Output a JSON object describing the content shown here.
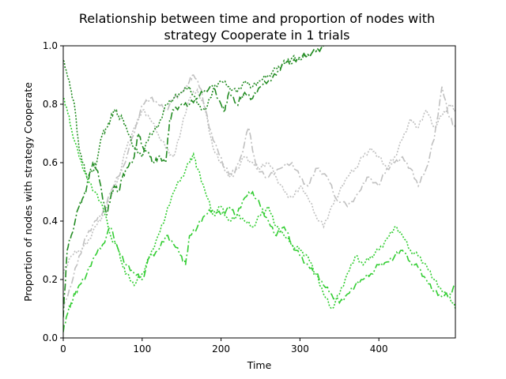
{
  "chart_data": {
    "type": "line",
    "title_line1": "Relationship between time and proportion of nodes with",
    "title_line2": "strategy Cooperate in 1 trials",
    "xlabel": "Time",
    "ylabel": "Proportion of nodes with strategy Cooperate",
    "xlim": [
      0,
      497
    ],
    "ylim": [
      0.0,
      1.0
    ],
    "xticks": [
      0,
      100,
      200,
      300,
      400
    ],
    "yticks": [
      0.0,
      0.2,
      0.4,
      0.6,
      0.8,
      1.0
    ],
    "xtick_labels": [
      "0",
      "100",
      "200",
      "300",
      "400"
    ],
    "ytick_labels": [
      "0.0",
      "0.2",
      "0.4",
      "0.6",
      "0.8",
      "1.0"
    ],
    "grid": false,
    "series": [
      {
        "color": "#c0c0c0",
        "dash": "9,3,2,3",
        "x": [
          0,
          10,
          20,
          30,
          40,
          50,
          60,
          75,
          90,
          100,
          110,
          120,
          130,
          140,
          150,
          160,
          165,
          175,
          185,
          195,
          205,
          215,
          225,
          235,
          245,
          260,
          275,
          290,
          300,
          310,
          320,
          335,
          345,
          360,
          375,
          385,
          400,
          410,
          420,
          430,
          440,
          450,
          460,
          470,
          480,
          490,
          497
        ],
        "y": [
          0.1,
          0.18,
          0.28,
          0.35,
          0.4,
          0.43,
          0.5,
          0.58,
          0.7,
          0.8,
          0.82,
          0.8,
          0.78,
          0.82,
          0.84,
          0.88,
          0.9,
          0.85,
          0.72,
          0.65,
          0.58,
          0.55,
          0.62,
          0.72,
          0.58,
          0.55,
          0.58,
          0.6,
          0.55,
          0.52,
          0.58,
          0.55,
          0.48,
          0.45,
          0.5,
          0.55,
          0.52,
          0.58,
          0.6,
          0.62,
          0.58,
          0.52,
          0.58,
          0.68,
          0.86,
          0.75,
          0.72
        ]
      },
      {
        "color": "#c0c0c0",
        "dash": "2,2",
        "x": [
          0,
          10,
          20,
          30,
          40,
          50,
          60,
          70,
          80,
          90,
          100,
          110,
          120,
          130,
          140,
          150,
          160,
          170,
          180,
          190,
          200,
          210,
          220,
          230,
          240,
          250,
          260,
          270,
          280,
          290,
          300,
          310,
          320,
          330,
          340,
          350,
          360,
          370,
          380,
          390,
          400,
          410,
          420,
          430,
          440,
          450,
          460,
          470,
          480,
          490,
          497
        ],
        "y": [
          0.22,
          0.28,
          0.3,
          0.32,
          0.38,
          0.42,
          0.48,
          0.55,
          0.65,
          0.72,
          0.78,
          0.75,
          0.7,
          0.65,
          0.62,
          0.72,
          0.82,
          0.85,
          0.78,
          0.65,
          0.6,
          0.55,
          0.58,
          0.62,
          0.6,
          0.58,
          0.6,
          0.55,
          0.5,
          0.48,
          0.52,
          0.48,
          0.42,
          0.38,
          0.45,
          0.5,
          0.55,
          0.58,
          0.62,
          0.65,
          0.62,
          0.58,
          0.62,
          0.68,
          0.75,
          0.72,
          0.78,
          0.72,
          0.76,
          0.8,
          0.78
        ]
      },
      {
        "color": "#228b22",
        "dash": "9,3,2,3",
        "x": [
          0,
          5,
          10,
          20,
          25,
          30,
          35,
          40,
          45,
          55,
          60,
          65,
          70,
          75,
          80,
          90,
          95,
          100,
          110,
          115,
          120,
          130,
          135,
          140,
          150,
          160,
          170,
          180,
          190,
          200,
          205,
          210,
          220,
          225,
          230,
          240,
          250,
          260,
          270,
          280,
          290,
          300,
          310,
          320,
          330
        ],
        "y": [
          0.07,
          0.3,
          0.35,
          0.45,
          0.48,
          0.52,
          0.58,
          0.6,
          0.55,
          0.42,
          0.48,
          0.52,
          0.5,
          0.55,
          0.58,
          0.62,
          0.7,
          0.66,
          0.62,
          0.6,
          0.62,
          0.6,
          0.75,
          0.78,
          0.8,
          0.8,
          0.82,
          0.85,
          0.86,
          0.8,
          0.78,
          0.84,
          0.8,
          0.82,
          0.84,
          0.82,
          0.86,
          0.88,
          0.9,
          0.95,
          0.94,
          0.96,
          0.97,
          0.98,
          1.0
        ]
      },
      {
        "color": "#228b22",
        "dash": "2,2",
        "x": [
          0,
          5,
          10,
          15,
          20,
          25,
          30,
          40,
          50,
          55,
          60,
          65,
          70,
          75,
          80,
          90,
          100,
          110,
          120,
          130,
          140,
          150,
          160,
          170,
          180,
          190,
          200,
          210,
          220,
          230,
          240,
          250,
          260,
          270,
          280,
          290,
          300,
          310,
          320,
          330
        ],
        "y": [
          0.95,
          0.9,
          0.85,
          0.78,
          0.65,
          0.6,
          0.55,
          0.58,
          0.7,
          0.72,
          0.75,
          0.78,
          0.76,
          0.75,
          0.72,
          0.65,
          0.62,
          0.7,
          0.72,
          0.8,
          0.82,
          0.84,
          0.86,
          0.8,
          0.78,
          0.85,
          0.88,
          0.86,
          0.84,
          0.88,
          0.86,
          0.88,
          0.9,
          0.92,
          0.94,
          0.96,
          0.95,
          0.97,
          0.98,
          1.0
        ]
      },
      {
        "color": "#32cd32",
        "dash": "9,3,2,3",
        "x": [
          0,
          5,
          10,
          15,
          20,
          30,
          40,
          50,
          60,
          70,
          80,
          90,
          100,
          110,
          120,
          130,
          140,
          150,
          155,
          160,
          170,
          180,
          190,
          200,
          210,
          220,
          230,
          240,
          250,
          260,
          270,
          280,
          290,
          300,
          310,
          320,
          330,
          340,
          350,
          360,
          370,
          380,
          390,
          400,
          410,
          420,
          430,
          440,
          450,
          460,
          470,
          480,
          490,
          497
        ],
        "y": [
          0.02,
          0.08,
          0.12,
          0.15,
          0.18,
          0.22,
          0.28,
          0.32,
          0.38,
          0.3,
          0.25,
          0.22,
          0.2,
          0.28,
          0.3,
          0.35,
          0.32,
          0.28,
          0.25,
          0.35,
          0.38,
          0.42,
          0.44,
          0.42,
          0.45,
          0.42,
          0.48,
          0.5,
          0.45,
          0.4,
          0.35,
          0.38,
          0.32,
          0.28,
          0.25,
          0.22,
          0.18,
          0.15,
          0.12,
          0.15,
          0.18,
          0.2,
          0.22,
          0.25,
          0.26,
          0.28,
          0.3,
          0.26,
          0.24,
          0.2,
          0.16,
          0.14,
          0.15,
          0.18
        ]
      },
      {
        "color": "#32cd32",
        "dash": "2,2",
        "x": [
          0,
          5,
          10,
          20,
          30,
          40,
          50,
          60,
          70,
          75,
          80,
          90,
          100,
          110,
          120,
          130,
          140,
          150,
          160,
          165,
          170,
          180,
          190,
          200,
          210,
          220,
          230,
          240,
          250,
          260,
          270,
          280,
          290,
          300,
          310,
          320,
          330,
          340,
          350,
          360,
          370,
          380,
          390,
          400,
          410,
          420,
          430,
          440,
          450,
          460,
          470,
          480,
          490,
          497
        ],
        "y": [
          0.82,
          0.78,
          0.72,
          0.62,
          0.55,
          0.5,
          0.45,
          0.35,
          0.3,
          0.25,
          0.22,
          0.18,
          0.22,
          0.28,
          0.35,
          0.42,
          0.5,
          0.55,
          0.6,
          0.63,
          0.58,
          0.5,
          0.42,
          0.45,
          0.4,
          0.42,
          0.4,
          0.38,
          0.42,
          0.45,
          0.38,
          0.35,
          0.32,
          0.3,
          0.28,
          0.22,
          0.15,
          0.1,
          0.15,
          0.22,
          0.28,
          0.25,
          0.28,
          0.3,
          0.34,
          0.38,
          0.35,
          0.3,
          0.28,
          0.25,
          0.2,
          0.16,
          0.14,
          0.1
        ]
      }
    ]
  }
}
